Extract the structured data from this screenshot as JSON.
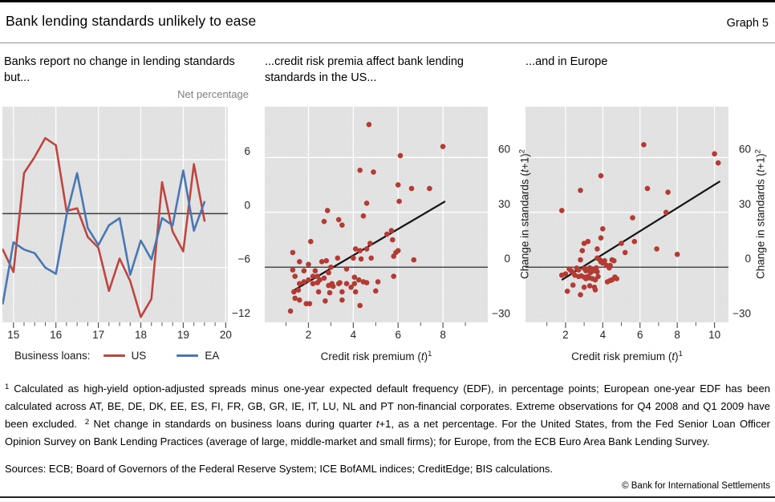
{
  "header": {
    "title": "Bank lending standards unlikely to ease",
    "graph_label": "Graph 5"
  },
  "panels": {
    "p1_title": "Banks report no change in lending standards but...",
    "p2_title": "...credit risk premia affect bank lending standards in the US...",
    "p3_title": "...and in Europe",
    "unit_label": "Net percentage"
  },
  "scatter_axis": {
    "x": {
      "pre": "Credit risk premium (",
      "var": "t",
      "post": ")",
      "sup": "1"
    },
    "y": {
      "pre": "Change in standards (",
      "var": "t",
      "post": "+1)",
      "sup": "2"
    }
  },
  "legend": {
    "title": "Business loans:",
    "us": "US",
    "ea": "EA"
  },
  "colors": {
    "us_red": "#bd4640",
    "ea_blue": "#4a77b2",
    "dot_red": "#b23b34",
    "trend_black": "#151515",
    "plot_bg": "#e1e1e1"
  },
  "chart_data": [
    {
      "type": "line",
      "title": "Banks report no change in lending standards but...",
      "ylabel": "Net percentage",
      "xlim": [
        2014.74,
        2020.05
      ],
      "ylim": [
        -12.1,
        11.9
      ],
      "x": [
        2014.75,
        2015.0,
        2015.25,
        2015.5,
        2015.75,
        2016.0,
        2016.25,
        2016.5,
        2016.75,
        2017.0,
        2017.25,
        2017.5,
        2017.75,
        2018.0,
        2018.25,
        2018.5,
        2018.75,
        2019.0,
        2019.25,
        2019.5
      ],
      "series": [
        {
          "name": "US",
          "color": "#bd4640",
          "values": [
            -4.0,
            -6.5,
            4.5,
            6.3,
            8.4,
            7.6,
            0.3,
            0.6,
            -2.6,
            -3.8,
            -8.6,
            -5.0,
            -7.5,
            -11.5,
            -9.5,
            3.5,
            -2.0,
            -4.2,
            5.5,
            -0.8
          ]
        },
        {
          "name": "EA",
          "color": "#4a77b2",
          "values": [
            -10.0,
            -3.2,
            -4.0,
            -4.4,
            -6.0,
            -6.7,
            -0.2,
            4.5,
            -1.6,
            -3.5,
            -1.3,
            -0.5,
            -6.8,
            -3.0,
            -5.1,
            -0.5,
            -1.3,
            4.8,
            -1.9,
            1.3
          ]
        }
      ],
      "xticks": {
        "major": [
          2015,
          2016,
          2017,
          2018,
          2019,
          2020
        ],
        "labels": [
          "15",
          "16",
          "17",
          "18",
          "19",
          "20"
        ],
        "minor": [
          2015.25,
          2015.5,
          2015.75,
          2016.25,
          2016.5,
          2016.75,
          2017.25,
          2017.5,
          2017.75,
          2018.25,
          2018.5,
          2018.75,
          2019.25,
          2019.5,
          2019.75
        ]
      },
      "yticks": [
        {
          "v": 6,
          "label": "6"
        },
        {
          "v": 0,
          "label": "0"
        },
        {
          "v": -6,
          "label": "−6"
        },
        {
          "v": -12,
          "label": "−12"
        }
      ],
      "grid_x": [
        2015,
        2016,
        2017,
        2018,
        2019,
        2020
      ],
      "grid_y": [
        6,
        -6
      ],
      "zero_line": true
    },
    {
      "type": "scatter",
      "title": "...credit risk premia affect bank lending standards in the US...",
      "xlabel": "Credit risk premium (t)^1",
      "ylabel": "Change in standards (t+1)^2",
      "xlim": [
        0.05,
        10.0
      ],
      "ylim": [
        -30.2,
        87.8
      ],
      "point_color": "#b23b34",
      "trend": [
        1.3,
        -13,
        8.1,
        36
      ],
      "points": [
        [
          1.3,
          8
        ],
        [
          1.3,
          -1.5
        ],
        [
          1.4,
          -5
        ],
        [
          1.35,
          -13.5
        ],
        [
          1.4,
          -17
        ],
        [
          1.2,
          -24
        ],
        [
          1.55,
          -12.5
        ],
        [
          1.6,
          3
        ],
        [
          1.6,
          -9
        ],
        [
          1.6,
          -18
        ],
        [
          1.8,
          -2
        ],
        [
          1.8,
          -8
        ],
        [
          1.9,
          -20
        ],
        [
          2.0,
          1.5
        ],
        [
          2.0,
          -7
        ],
        [
          2.05,
          -20
        ],
        [
          2.1,
          14
        ],
        [
          2.2,
          -5
        ],
        [
          2.2,
          -9
        ],
        [
          2.3,
          -2
        ],
        [
          2.4,
          -5
        ],
        [
          2.4,
          -8.5
        ],
        [
          2.45,
          -13.5
        ],
        [
          2.5,
          -7
        ],
        [
          2.6,
          3
        ],
        [
          2.7,
          25
        ],
        [
          2.7,
          -6
        ],
        [
          2.8,
          3.5
        ],
        [
          2.75,
          -18.5
        ],
        [
          2.85,
          31
        ],
        [
          2.9,
          -3
        ],
        [
          2.9,
          -10
        ],
        [
          2.95,
          -14
        ],
        [
          3.0,
          0
        ],
        [
          3.05,
          -9
        ],
        [
          3.1,
          -10.5
        ],
        [
          3.3,
          5
        ],
        [
          3.35,
          26
        ],
        [
          3.35,
          -9
        ],
        [
          3.4,
          -8.5
        ],
        [
          3.5,
          23
        ],
        [
          3.5,
          -13.5
        ],
        [
          3.5,
          -18
        ],
        [
          3.7,
          -1
        ],
        [
          3.7,
          -9
        ],
        [
          3.9,
          -11
        ],
        [
          4.0,
          5
        ],
        [
          4.05,
          -5.5
        ],
        [
          4.05,
          -9
        ],
        [
          4.1,
          10
        ],
        [
          4.1,
          -13.5
        ],
        [
          4.25,
          -7
        ],
        [
          4.3,
          53
        ],
        [
          4.3,
          9
        ],
        [
          4.3,
          -21
        ],
        [
          4.35,
          4.5
        ],
        [
          4.45,
          28
        ],
        [
          4.45,
          -8
        ],
        [
          4.6,
          35
        ],
        [
          4.6,
          10
        ],
        [
          4.6,
          -8.5
        ],
        [
          4.7,
          78
        ],
        [
          4.75,
          13
        ],
        [
          4.8,
          5
        ],
        [
          4.9,
          52
        ],
        [
          5.0,
          -13
        ],
        [
          5.1,
          -8
        ],
        [
          5.5,
          18
        ],
        [
          5.7,
          20
        ],
        [
          5.75,
          15
        ],
        [
          5.8,
          6
        ],
        [
          5.8,
          -5
        ],
        [
          5.9,
          8
        ],
        [
          6.0,
          9
        ],
        [
          6.1,
          61
        ],
        [
          6.0,
          45
        ],
        [
          6.05,
          36
        ],
        [
          6.6,
          43
        ],
        [
          6.7,
          4
        ],
        [
          7.4,
          43
        ],
        [
          8.0,
          66
        ]
      ],
      "xticks": {
        "major": [
          2,
          4,
          6,
          8
        ],
        "labels": [
          "2",
          "4",
          "6",
          "8"
        ],
        "minor": [
          1,
          3,
          5,
          7,
          9
        ]
      },
      "yticks": [
        {
          "v": 60,
          "label": "60"
        },
        {
          "v": 30,
          "label": "30"
        },
        {
          "v": 0,
          "label": "0"
        },
        {
          "v": -30,
          "label": "−30"
        }
      ],
      "grid_x": [
        2,
        4,
        6,
        8
      ],
      "grid_y": [
        60,
        30
      ],
      "zero_line": true
    },
    {
      "type": "scatter",
      "title": "...and in Europe",
      "xlabel": "Credit risk premium (t)^1",
      "ylabel": "Change in standards (t+1)^2",
      "xlim": [
        -0.15,
        10.75
      ],
      "ylim": [
        -30.2,
        87.8
      ],
      "point_color": "#b23b34",
      "trend": [
        1.8,
        -7,
        10.3,
        47
      ],
      "points": [
        [
          6.2,
          67
        ],
        [
          10.0,
          62
        ],
        [
          10.2,
          57
        ],
        [
          3.9,
          50
        ],
        [
          2.8,
          42
        ],
        [
          6.4,
          43
        ],
        [
          7.5,
          41
        ],
        [
          1.8,
          31
        ],
        [
          7.4,
          30
        ],
        [
          5.6,
          27
        ],
        [
          4.0,
          21
        ],
        [
          3.2,
          14
        ],
        [
          3.0,
          13
        ],
        [
          3.9,
          16
        ],
        [
          5.0,
          13
        ],
        [
          5.7,
          14
        ],
        [
          2.9,
          9
        ],
        [
          3.7,
          10
        ],
        [
          5.2,
          8
        ],
        [
          6.9,
          10
        ],
        [
          8.0,
          7
        ],
        [
          2.8,
          4
        ],
        [
          3.7,
          5
        ],
        [
          3.85,
          4
        ],
        [
          3.95,
          3
        ],
        [
          4.1,
          3.5
        ],
        [
          4.5,
          4
        ],
        [
          4.6,
          3.5
        ],
        [
          3.9,
          2.9
        ],
        [
          4.0,
          2.2
        ],
        [
          4.2,
          1
        ],
        [
          4.35,
          -0.4
        ],
        [
          4.4,
          1
        ],
        [
          2.2,
          -1
        ],
        [
          2.3,
          -2
        ],
        [
          2.4,
          -3
        ],
        [
          2.6,
          -0.5
        ],
        [
          2.7,
          -1.5
        ],
        [
          3.0,
          -0.7
        ],
        [
          3.1,
          -2
        ],
        [
          3.2,
          -1.5
        ],
        [
          3.3,
          -0.4
        ],
        [
          3.35,
          -2.9
        ],
        [
          3.45,
          -1
        ],
        [
          3.55,
          -2
        ],
        [
          3.65,
          -0.4
        ],
        [
          3.7,
          -2.5
        ],
        [
          2.0,
          -3.7
        ],
        [
          1.8,
          -4.4
        ],
        [
          2.5,
          -4.4
        ],
        [
          2.7,
          -5.1
        ],
        [
          2.85,
          -4.8
        ],
        [
          3.0,
          -5.4
        ],
        [
          3.1,
          -6.3
        ],
        [
          3.2,
          -5.1
        ],
        [
          3.3,
          -5.9
        ],
        [
          3.45,
          -6.3
        ],
        [
          3.6,
          -6.9
        ],
        [
          3.75,
          -5.1
        ],
        [
          4.65,
          -5.4
        ],
        [
          4.75,
          -6.3
        ],
        [
          4.4,
          -7.3
        ],
        [
          4.5,
          -6.9
        ],
        [
          4.25,
          -8
        ],
        [
          2.4,
          -9.8
        ],
        [
          3.0,
          -11
        ],
        [
          3.3,
          -10.2
        ],
        [
          3.55,
          -11
        ],
        [
          2.1,
          -13.2
        ],
        [
          2.8,
          -15.1
        ],
        [
          3.6,
          -12.4
        ]
      ],
      "xticks": {
        "major": [
          2,
          4,
          6,
          8,
          10
        ],
        "labels": [
          "2",
          "4",
          "6",
          "8",
          "10"
        ],
        "minor": [
          1,
          3,
          5,
          7,
          9
        ]
      },
      "yticks": [
        {
          "v": 60,
          "label": "60"
        },
        {
          "v": 30,
          "label": "30"
        },
        {
          "v": 0,
          "label": "0"
        },
        {
          "v": -30,
          "label": "−30"
        }
      ],
      "grid_x": [
        2,
        4,
        6,
        8,
        10
      ],
      "grid_y": [
        60,
        30
      ],
      "zero_line": true
    }
  ],
  "footnotes": {
    "fn1_marker": "1",
    "fn1_text": " Calculated as high-yield option-adjusted spreads minus one-year expected default frequency (EDF), in percentage points; European one-year EDF has been calculated across AT, BE, DE, DK, EE, ES, FI, FR, GB, GR, IE, IT, LU, NL and PT non-financial corporates. Extreme observations for Q4 2008 and Q1 2009 have been excluded.",
    "fn2_marker": "2",
    "fn2_pre": " Net change in standards on business loans during quarter ",
    "fn2_var": "t",
    "fn2_post": "+1, as a net percentage. For the United States, from the Fed Senior Loan Officer Opinion Survey on Bank Lending Practices (average of large, middle-market and small firms); for Europe, from the ECB Euro Area Bank Lending Survey."
  },
  "sources": "Sources: ECB; Board of Governors of the Federal Reserve System; ICE BofAML indices; CreditEdge; BIS calculations.",
  "copyright": "© Bank for International Settlements"
}
